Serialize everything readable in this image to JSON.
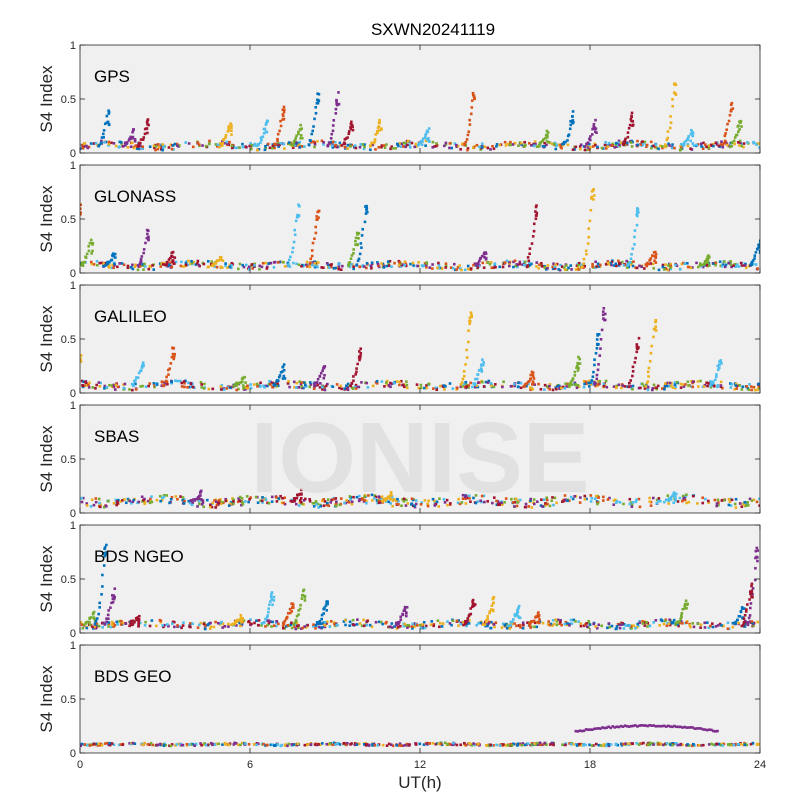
{
  "title": "SXWN20241119",
  "watermark": "IONISE",
  "xlabel": "UT(h)",
  "ylabel": "S4 Index",
  "x_ticks": [
    "0",
    "6",
    "12",
    "18",
    "24"
  ],
  "y_ticks": [
    "0",
    "0.5",
    "1"
  ],
  "colors": {
    "plot_background": "#f0f0f0",
    "series_palette": [
      "#0072BD",
      "#D95319",
      "#EDB120",
      "#7E2F8E",
      "#77AC30",
      "#4DBEEE",
      "#A2142F"
    ]
  },
  "chart_data": [
    {
      "type": "scatter",
      "title": "GPS",
      "xlim": [
        0,
        24
      ],
      "ylim": [
        0,
        1
      ],
      "grid": false,
      "baseline": 0.07,
      "noise": 0.03,
      "spikes": [
        [
          1.0,
          0.38
        ],
        [
          1.9,
          0.22
        ],
        [
          2.4,
          0.3
        ],
        [
          5.3,
          0.27
        ],
        [
          6.6,
          0.3
        ],
        [
          7.2,
          0.42
        ],
        [
          7.8,
          0.25
        ],
        [
          8.4,
          0.55
        ],
        [
          9.1,
          0.55
        ],
        [
          9.6,
          0.3
        ],
        [
          10.6,
          0.3
        ],
        [
          12.3,
          0.22
        ],
        [
          13.9,
          0.55
        ],
        [
          16.5,
          0.2
        ],
        [
          17.4,
          0.37
        ],
        [
          18.2,
          0.3
        ],
        [
          19.5,
          0.37
        ],
        [
          21.0,
          0.65
        ],
        [
          21.6,
          0.2
        ],
        [
          23.0,
          0.45
        ],
        [
          23.3,
          0.3
        ]
      ]
    },
    {
      "type": "scatter",
      "title": "GLONASS",
      "xlim": [
        0,
        24
      ],
      "ylim": [
        0,
        1
      ],
      "grid": false,
      "baseline": 0.07,
      "noise": 0.03,
      "spikes": [
        [
          0.0,
          0.62
        ],
        [
          0.4,
          0.3
        ],
        [
          1.2,
          0.18
        ],
        [
          2.4,
          0.4
        ],
        [
          3.3,
          0.2
        ],
        [
          5.0,
          0.15
        ],
        [
          7.7,
          0.63
        ],
        [
          8.4,
          0.58
        ],
        [
          9.8,
          0.38
        ],
        [
          10.1,
          0.63
        ],
        [
          14.3,
          0.2
        ],
        [
          16.1,
          0.62
        ],
        [
          18.1,
          0.78
        ],
        [
          19.7,
          0.6
        ],
        [
          20.3,
          0.2
        ],
        [
          22.2,
          0.15
        ],
        [
          24.0,
          0.3
        ]
      ]
    },
    {
      "type": "scatter",
      "title": "GALILEO",
      "xlim": [
        0,
        24
      ],
      "ylim": [
        0,
        1
      ],
      "grid": false,
      "baseline": 0.07,
      "noise": 0.03,
      "spikes": [
        [
          0.0,
          0.35
        ],
        [
          2.2,
          0.28
        ],
        [
          3.3,
          0.42
        ],
        [
          5.8,
          0.15
        ],
        [
          7.2,
          0.25
        ],
        [
          8.6,
          0.25
        ],
        [
          9.9,
          0.42
        ],
        [
          13.8,
          0.75
        ],
        [
          14.2,
          0.3
        ],
        [
          16.0,
          0.2
        ],
        [
          17.6,
          0.32
        ],
        [
          18.3,
          0.55
        ],
        [
          18.5,
          0.78
        ],
        [
          19.7,
          0.5
        ],
        [
          20.3,
          0.68
        ],
        [
          22.6,
          0.3
        ]
      ]
    },
    {
      "type": "scatter",
      "title": "SBAS",
      "xlim": [
        0,
        24
      ],
      "ylim": [
        0,
        1
      ],
      "grid": false,
      "baseline": 0.11,
      "noise": 0.04,
      "spikes": [
        [
          4.3,
          0.2
        ],
        [
          7.8,
          0.2
        ],
        [
          11.0,
          0.18
        ],
        [
          21.0,
          0.18
        ]
      ]
    },
    {
      "type": "scatter",
      "title": "BDS NGEO",
      "xlim": [
        0,
        24
      ],
      "ylim": [
        0,
        1
      ],
      "grid": false,
      "baseline": 0.08,
      "noise": 0.03,
      "spikes": [
        [
          0.5,
          0.2
        ],
        [
          0.9,
          0.82
        ],
        [
          1.2,
          0.4
        ],
        [
          2.1,
          0.15
        ],
        [
          5.7,
          0.15
        ],
        [
          6.8,
          0.38
        ],
        [
          7.5,
          0.28
        ],
        [
          7.9,
          0.4
        ],
        [
          8.7,
          0.3
        ],
        [
          11.5,
          0.25
        ],
        [
          13.9,
          0.3
        ],
        [
          14.6,
          0.32
        ],
        [
          15.5,
          0.25
        ],
        [
          16.2,
          0.2
        ],
        [
          21.4,
          0.3
        ],
        [
          23.4,
          0.25
        ],
        [
          23.9,
          0.78
        ],
        [
          23.7,
          0.45
        ]
      ]
    },
    {
      "type": "scatter",
      "title": "BDS GEO",
      "xlim": [
        0,
        24
      ],
      "ylim": [
        0,
        1
      ],
      "grid": false,
      "baseline": 0.08,
      "noise": 0.01,
      "spikes": [],
      "arcs": [
        {
          "x": [
            17.5,
            19.5,
            22.5
          ],
          "y": [
            0.2,
            0.25,
            0.2
          ]
        }
      ]
    }
  ]
}
